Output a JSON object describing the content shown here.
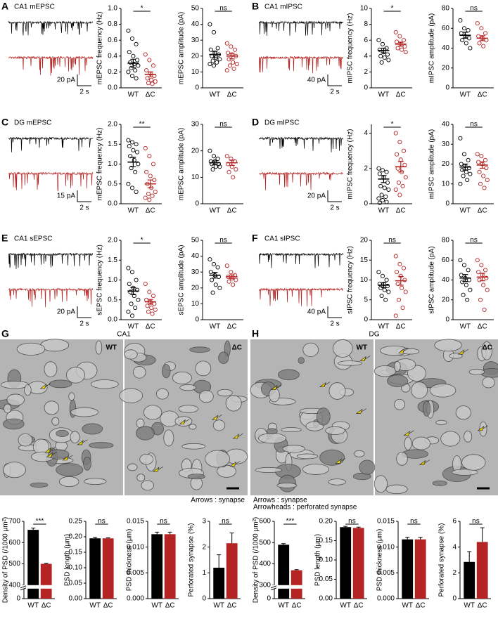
{
  "panels": [
    {
      "letter": "A",
      "trace_label": "CA1 mEPSC",
      "scale_y": "20 pA",
      "scale_x": "2 s"
    },
    {
      "letter": "B",
      "trace_label": "CA1 mIPSC",
      "scale_y": "40 pA",
      "scale_x": "2 s"
    },
    {
      "letter": "C",
      "trace_label": "DG mEPSC",
      "scale_y": "15 pA",
      "scale_x": "2 s"
    },
    {
      "letter": "D",
      "trace_label": "DG mIPSC",
      "scale_y": "20 pA",
      "scale_x": "2 s"
    },
    {
      "letter": "E",
      "trace_label": "CA1 sEPSC",
      "scale_y": "20 pA",
      "scale_x": "2 s"
    },
    {
      "letter": "F",
      "trace_label": "CA1 sIPSC",
      "scale_y": "40 pA",
      "scale_x": "2 s"
    }
  ],
  "micrographs": [
    {
      "letter": "G",
      "title": "CA1",
      "left_label": "WT",
      "right_label": "ΔC",
      "notes": [
        "Arrows : synapse"
      ]
    },
    {
      "letter": "H",
      "title": "DG",
      "left_label": "WT",
      "right_label": "ΔC",
      "notes": [
        "Arrows : synapse",
        "Arrowheads : perforated synapse"
      ]
    }
  ],
  "chart_data": [
    {
      "type": "strip",
      "ylabel": "mEPSC frequency (Hz)",
      "categories": [
        "WT",
        "ΔC"
      ],
      "significance": "*",
      "ylim": [
        0,
        1
      ],
      "yticks": [
        {
          "value": 0,
          "label": "0.0"
        },
        {
          "value": 0.2,
          "label": "0.2"
        },
        {
          "value": 0.4,
          "label": "0.4"
        },
        {
          "value": 0.6,
          "label": "0.6"
        },
        {
          "value": 0.8,
          "label": "0.8"
        },
        {
          "value": 1,
          "label": "1.0"
        }
      ],
      "groups": [
        {
          "color": "#000000",
          "values": [
            0.72,
            0.62,
            0.55,
            0.45,
            0.4,
            0.35,
            0.32,
            0.3,
            0.28,
            0.25,
            0.22,
            0.2,
            0.15,
            0.12
          ],
          "mean": 0.31,
          "sem": 0.05
        },
        {
          "color": "#b52424",
          "values": [
            0.42,
            0.35,
            0.28,
            0.22,
            0.18,
            0.15,
            0.12,
            0.1,
            0.08,
            0.06,
            0.05
          ],
          "mean": 0.17,
          "sem": 0.03
        }
      ]
    },
    {
      "type": "strip",
      "ylabel": "mEPSC amplitude (pA)",
      "categories": [
        "WT",
        "ΔC"
      ],
      "significance": "ns",
      "ylim": [
        0,
        50
      ],
      "yticks": [
        0,
        10,
        20,
        30,
        40,
        50
      ],
      "groups": [
        {
          "color": "#000000",
          "values": [
            40,
            35,
            25,
            24,
            22,
            21,
            20,
            19,
            18,
            17,
            16,
            15,
            14
          ],
          "mean": 21,
          "sem": 2
        },
        {
          "color": "#b52424",
          "values": [
            28,
            26,
            24,
            22,
            21,
            20,
            18,
            16,
            15,
            14,
            12,
            11
          ],
          "mean": 20,
          "sem": 1.8
        }
      ]
    },
    {
      "type": "strip",
      "ylabel": "mIPSC frequency (Hz)",
      "categories": [
        "WT",
        "ΔC"
      ],
      "significance": "*",
      "ylim": [
        0,
        10
      ],
      "yticks": [
        0,
        2,
        4,
        6,
        8,
        10
      ],
      "groups": [
        {
          "color": "#000000",
          "values": [
            6,
            5.5,
            5,
            4.8,
            4.5,
            4.2,
            4,
            3.8,
            3.5,
            3.2
          ],
          "mean": 4.7,
          "sem": 0.3
        },
        {
          "color": "#b52424",
          "values": [
            7,
            6.5,
            6,
            5.8,
            5.5,
            5.2,
            5,
            4.8,
            4.5
          ],
          "mean": 5.5,
          "sem": 0.25
        }
      ]
    },
    {
      "type": "strip",
      "ylabel": "mIPSC amplitude (pA)",
      "categories": [
        "WT",
        "ΔC"
      ],
      "significance": "ns",
      "ylim": [
        0,
        80
      ],
      "yticks": [
        0,
        20,
        40,
        60,
        80
      ],
      "groups": [
        {
          "color": "#000000",
          "values": [
            68,
            60,
            58,
            55,
            52,
            50,
            48,
            45,
            40
          ],
          "mean": 53,
          "sem": 3
        },
        {
          "color": "#b52424",
          "values": [
            65,
            60,
            55,
            52,
            50,
            48,
            45,
            42
          ],
          "mean": 50,
          "sem": 2.5
        }
      ]
    },
    {
      "type": "strip",
      "ylabel": "mEPSC frequency (Hz)",
      "categories": [
        "WT",
        "ΔC"
      ],
      "significance": "**",
      "ylim": [
        0,
        2
      ],
      "yticks": [
        {
          "value": 0,
          "label": "0.0"
        },
        {
          "value": 0.5,
          "label": "0.5"
        },
        {
          "value": 1,
          "label": "1.0"
        },
        {
          "value": 1.5,
          "label": "1.5"
        },
        {
          "value": 2,
          "label": "2.0"
        }
      ],
      "groups": [
        {
          "color": "#000000",
          "values": [
            1.6,
            1.55,
            1.5,
            1.45,
            1.35,
            1.3,
            1.2,
            1.1,
            1,
            0.9,
            0.8,
            0.5,
            0.4,
            0.3
          ],
          "mean": 1.05,
          "sem": 0.12
        },
        {
          "color": "#b52424",
          "values": [
            1.4,
            1.2,
            1,
            0.8,
            0.7,
            0.6,
            0.5,
            0.4,
            0.3,
            0.25,
            0.2,
            0.15,
            0.1
          ],
          "mean": 0.5,
          "sem": 0.1
        }
      ]
    },
    {
      "type": "strip",
      "ylabel": "mEPSC amplitude (pA)",
      "categories": [
        "WT",
        "ΔC"
      ],
      "significance": "ns",
      "ylim": [
        0,
        30
      ],
      "yticks": [
        0,
        10,
        20,
        30
      ],
      "groups": [
        {
          "color": "#000000",
          "values": [
            20,
            18,
            17,
            16,
            16,
            15,
            15,
            14,
            14,
            13
          ],
          "mean": 15.5,
          "sem": 0.7
        },
        {
          "color": "#b52424",
          "values": [
            18,
            17,
            16,
            15,
            14,
            13,
            12,
            10
          ],
          "mean": 15.5,
          "sem": 1
        }
      ]
    },
    {
      "type": "strip",
      "ylabel": "mIPSC frequency (Hz)",
      "categories": [
        "WT",
        "ΔC"
      ],
      "significance": "*",
      "ylim": [
        0,
        4.5
      ],
      "yticks": [
        0,
        2,
        4
      ],
      "groups": [
        {
          "color": "#000000",
          "values": [
            2,
            1.9,
            1.8,
            1.7,
            1.5,
            1.2,
            1,
            0.9,
            0.8,
            0.5,
            0.4,
            0.3,
            0.2,
            0.1,
            0.05
          ],
          "mean": 1.4,
          "sem": 0.2
        },
        {
          "color": "#b52424",
          "values": [
            4,
            3.5,
            3,
            2.8,
            2.5,
            2.2,
            2,
            1.8,
            1.5,
            1.2,
            1,
            0.8,
            0.5
          ],
          "mean": 2.1,
          "sem": 0.3
        }
      ]
    },
    {
      "type": "strip",
      "ylabel": "mIPSC amplitude (pA)",
      "categories": [
        "WT",
        "ΔC"
      ],
      "significance": "ns",
      "ylim": [
        0,
        40
      ],
      "yticks": [
        0,
        10,
        20,
        30,
        40
      ],
      "groups": [
        {
          "color": "#000000",
          "values": [
            33,
            25,
            22,
            20,
            19,
            18,
            17,
            16,
            15,
            14,
            12,
            10
          ],
          "mean": 18.5,
          "sem": 1.5
        },
        {
          "color": "#b52424",
          "values": [
            25,
            24,
            22,
            21,
            20,
            18,
            16,
            14,
            12,
            10,
            8
          ],
          "mean": 19.5,
          "sem": 1.6
        }
      ]
    },
    {
      "type": "strip",
      "ylabel": "sEPSC frequency (Hz)",
      "categories": [
        "WT",
        "ΔC"
      ],
      "significance": "*",
      "ylim": [
        0,
        2
      ],
      "yticks": [
        {
          "value": 0,
          "label": "0.0"
        },
        {
          "value": 0.5,
          "label": "0.5"
        },
        {
          "value": 1,
          "label": "1.0"
        },
        {
          "value": 1.5,
          "label": "1.5"
        },
        {
          "value": 2,
          "label": "2.0"
        }
      ],
      "groups": [
        {
          "color": "#000000",
          "values": [
            1.3,
            1.2,
            1,
            0.9,
            0.8,
            0.75,
            0.7,
            0.6,
            0.5,
            0.4,
            0.3,
            0.2,
            0.1
          ],
          "mean": 0.72,
          "sem": 0.09
        },
        {
          "color": "#b52424",
          "values": [
            0.9,
            0.7,
            0.6,
            0.5,
            0.45,
            0.4,
            0.35,
            0.3,
            0.25,
            0.2,
            0.15
          ],
          "mean": 0.45,
          "sem": 0.06
        }
      ]
    },
    {
      "type": "strip",
      "ylabel": "sEPSC amplitude (pA)",
      "categories": [
        "WT",
        "ΔC"
      ],
      "significance": "ns",
      "ylim": [
        0,
        50
      ],
      "yticks": [
        0,
        10,
        20,
        30,
        40,
        50
      ],
      "groups": [
        {
          "color": "#000000",
          "values": [
            38,
            35,
            33,
            30,
            28,
            27,
            25,
            22,
            20,
            17
          ],
          "mean": 28,
          "sem": 1.8
        },
        {
          "color": "#b52424",
          "values": [
            34,
            30,
            28,
            27,
            26,
            25,
            24,
            22
          ],
          "mean": 27,
          "sem": 1.2
        }
      ]
    },
    {
      "type": "strip",
      "ylabel": "sIPSC frequency (Hz)",
      "categories": [
        "WT",
        "ΔC"
      ],
      "significance": "ns",
      "ylim": [
        0,
        20
      ],
      "yticks": [
        0,
        5,
        10,
        15,
        20
      ],
      "groups": [
        {
          "color": "#000000",
          "values": [
            12,
            11,
            10,
            9,
            9,
            8.5,
            8,
            7.5,
            7,
            6,
            5
          ],
          "mean": 8.7,
          "sem": 0.6
        },
        {
          "color": "#b52424",
          "values": [
            16,
            14,
            13,
            12,
            11,
            10,
            9,
            8,
            7,
            5,
            3,
            1
          ],
          "mean": 9.8,
          "sem": 1.1
        }
      ]
    },
    {
      "type": "strip",
      "ylabel": "sIPSC amplitude (pA)",
      "categories": [
        "WT",
        "ΔC"
      ],
      "significance": "ns",
      "ylim": [
        0,
        80
      ],
      "yticks": [
        0,
        20,
        40,
        60,
        80
      ],
      "groups": [
        {
          "color": "#000000",
          "values": [
            60,
            55,
            50,
            45,
            42,
            40,
            38,
            35,
            30,
            25,
            20
          ],
          "mean": 42,
          "sem": 3.5
        },
        {
          "color": "#b52424",
          "values": [
            60,
            55,
            50,
            48,
            45,
            42,
            40,
            35,
            30,
            20,
            10
          ],
          "mean": 43,
          "sem": 3.8
        }
      ]
    },
    {
      "type": "bar",
      "ylabel": "Density of PSD (/1000 μm²)",
      "categories": [
        "WT",
        "ΔC"
      ],
      "values": [
        660,
        500
      ],
      "errors": [
        8,
        3
      ],
      "colors": [
        "#000000",
        "#b52424"
      ],
      "significance": "***",
      "axis_break": true,
      "ylim": [
        0,
        700
      ],
      "yticks": [
        0,
        400,
        500,
        600,
        700
      ]
    },
    {
      "type": "bar",
      "ylabel": "PSD length (μm)",
      "categories": [
        "WT",
        "ΔC"
      ],
      "values": [
        0.195,
        0.195
      ],
      "errors": [
        0.003,
        0.002
      ],
      "colors": [
        "#000000",
        "#b52424"
      ],
      "significance": "ns",
      "ylim": [
        0,
        0.25
      ],
      "yticks": [
        {
          "value": 0,
          "label": "0.00"
        },
        {
          "value": 0.05,
          "label": "0.05"
        },
        {
          "value": 0.1,
          "label": "0.10"
        },
        {
          "value": 0.15,
          "label": "0.15"
        },
        {
          "value": 0.2,
          "label": "0.20"
        },
        {
          "value": 0.25,
          "label": "0.25"
        }
      ]
    },
    {
      "type": "bar",
      "ylabel": "PSD thickness (μm)",
      "categories": [
        "WT",
        "ΔC"
      ],
      "values": [
        0.0125,
        0.0125
      ],
      "errors": [
        0.0004,
        0.0004
      ],
      "colors": [
        "#000000",
        "#b52424"
      ],
      "significance": "ns",
      "ylim": [
        0,
        0.015
      ],
      "yticks": [
        {
          "value": 0,
          "label": "0.000"
        },
        {
          "value": 0.005,
          "label": "0.005"
        },
        {
          "value": 0.01,
          "label": "0.010"
        },
        {
          "value": 0.015,
          "label": "0.015"
        }
      ]
    },
    {
      "type": "bar",
      "ylabel": "Perforated synapse (%)",
      "categories": [
        "WT",
        "ΔC"
      ],
      "values": [
        1.2,
        2.15
      ],
      "errors": [
        0.5,
        0.4
      ],
      "colors": [
        "#000000",
        "#b52424"
      ],
      "significance": "ns",
      "ylim": [
        0,
        3
      ],
      "yticks": [
        0,
        1,
        2,
        3
      ]
    },
    {
      "type": "bar",
      "ylabel": "Density of PSD (/1000 μm²)",
      "categories": [
        "WT",
        "ΔC"
      ],
      "values": [
        490,
        370
      ],
      "errors": [
        5,
        3
      ],
      "colors": [
        "#000000",
        "#b52424"
      ],
      "significance": "***",
      "axis_break": true,
      "ylim": [
        0,
        600
      ],
      "yticks": [
        0,
        300,
        400,
        500,
        600
      ]
    },
    {
      "type": "bar",
      "ylabel": "PSD length (μm)",
      "categories": [
        "WT",
        "ΔC"
      ],
      "values": [
        0.185,
        0.183
      ],
      "errors": [
        0.002,
        0.002
      ],
      "colors": [
        "#000000",
        "#b52424"
      ],
      "significance": "ns",
      "ylim": [
        0,
        0.2
      ],
      "yticks": [
        {
          "value": 0,
          "label": "0.00"
        },
        {
          "value": 0.05,
          "label": "0.05"
        },
        {
          "value": 0.1,
          "label": "0.10"
        },
        {
          "value": 0.15,
          "label": "0.15"
        },
        {
          "value": 0.2,
          "label": "0.20"
        }
      ]
    },
    {
      "type": "bar",
      "ylabel": "PSD thickness (μm)",
      "categories": [
        "WT",
        "ΔC"
      ],
      "values": [
        0.0115,
        0.0115
      ],
      "errors": [
        0.0004,
        0.0004
      ],
      "colors": [
        "#000000",
        "#b52424"
      ],
      "significance": "ns",
      "ylim": [
        0,
        0.015
      ],
      "yticks": [
        {
          "value": 0,
          "label": "0.000"
        },
        {
          "value": 0.005,
          "label": "0.005"
        },
        {
          "value": 0.01,
          "label": "0.010"
        },
        {
          "value": 0.015,
          "label": "0.015"
        }
      ]
    },
    {
      "type": "bar",
      "ylabel": "Perforated synapse (%)",
      "categories": [
        "WT",
        "ΔC"
      ],
      "values": [
        2.85,
        4.4
      ],
      "errors": [
        0.8,
        1.1
      ],
      "colors": [
        "#000000",
        "#b52424"
      ],
      "significance": "ns",
      "ylim": [
        0,
        6
      ],
      "yticks": [
        0,
        2,
        4,
        6
      ]
    }
  ]
}
